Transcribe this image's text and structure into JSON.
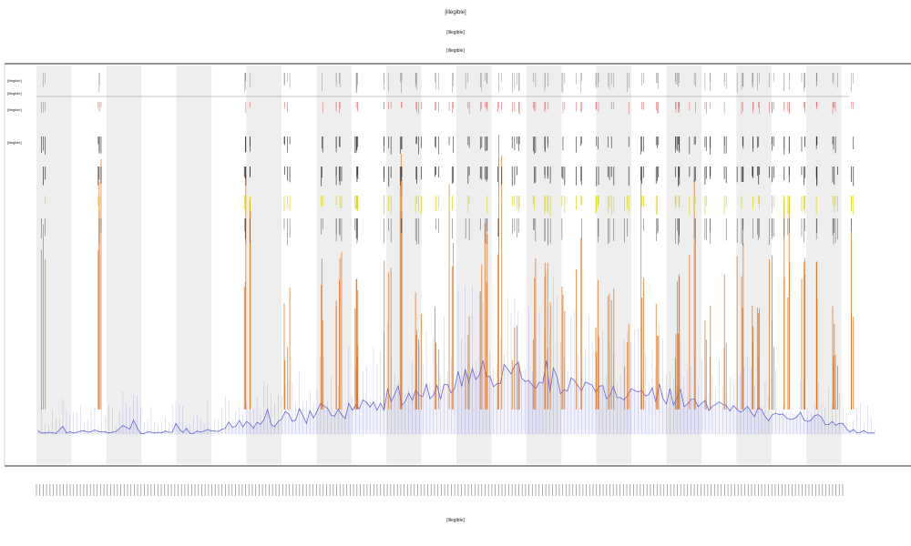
{
  "chart_data": {
    "type": "line",
    "title": "[illegible]",
    "subtitle_lines": [
      "[illegible]",
      "[illegible]"
    ],
    "xlabel": "[illegible]",
    "ylabel": "",
    "legend_labels": [
      "[illegible]",
      "[illegible]",
      "[illegible]",
      "[illegible]"
    ],
    "legend_placement": "top-left",
    "grid": false,
    "band_count": 24,
    "band_color": "#eeeeee",
    "x_tick_count": 240,
    "x": {
      "min": 0,
      "max": 240
    },
    "ylim": [
      0,
      1
    ],
    "colors": {
      "coverage": "#5a5ad6",
      "peaks": "#e06a10",
      "yellow_track": "#d8d400",
      "red_track": "#e05050",
      "dark_track": "#222222"
    },
    "series": [
      {
        "values": [
          0.083,
          0.078,
          0.078,
          0.08,
          0.079,
          0.077,
          0.086,
          0.095,
          0.078,
          0.081,
          0.078,
          0.08,
          0.083,
          0.084,
          0.08,
          0.081,
          0.086,
          0.082,
          0.081,
          0.081,
          0.078,
          0.08,
          0.082,
          0.089,
          0.097,
          0.092,
          0.088,
          0.111,
          0.092,
          0.077,
          0.077,
          0.081,
          0.08,
          0.078,
          0.08,
          0.078,
          0.083,
          0.08,
          0.08,
          0.102,
          0.088,
          0.079,
          0.09,
          0.077,
          0.077,
          0.083,
          0.08,
          0.083,
          0.087,
          0.083,
          0.083,
          0.082,
          0.087,
          0.09,
          0.106,
          0.092,
          0.095,
          0.11,
          0.093,
          0.107,
          0.101,
          0.09,
          0.105,
          0.1,
          0.112,
          0.138,
          0.099,
          0.094,
          0.107,
          0.113,
          0.132,
          0.126,
          0.107,
          0.111,
          0.139,
          0.122,
          0.102,
          0.134,
          0.116,
          0.133,
          0.152,
          0.146,
          0.14,
          0.123,
          0.12,
          0.138,
          0.124,
          0.114,
          0.153,
          0.135,
          0.149,
          0.139,
          0.161,
          0.155,
          0.143,
          0.156,
          0.135,
          0.153,
          0.135,
          0.189,
          0.156,
          0.175,
          0.197,
          0.147,
          0.157,
          0.178,
          0.16,
          0.187,
          0.172,
          0.17,
          0.201,
          0.164,
          0.173,
          0.198,
          0.163,
          0.2,
          0.2,
          0.179,
          0.191,
          0.233,
          0.195,
          0.238,
          0.205,
          0.24,
          0.212,
          0.224,
          0.26,
          0.219,
          0.22,
          0.194,
          0.202,
          0.202,
          0.25,
          0.239,
          0.226,
          0.247,
          0.255,
          0.215,
          0.207,
          0.21,
          0.198,
          0.19,
          0.206,
          0.203,
          0.26,
          0.18,
          0.241,
          0.22,
          0.176,
          0.187,
          0.183,
          0.217,
          0.209,
          0.195,
          0.184,
          0.206,
          0.202,
          0.198,
          0.18,
          0.196,
          0.197,
          0.164,
          0.172,
          0.196,
          0.167,
          0.167,
          0.161,
          0.172,
          0.189,
          0.185,
          0.181,
          0.185,
          0.171,
          0.174,
          0.191,
          0.155,
          0.202,
          0.165,
          0.151,
          0.19,
          0.148,
          0.167,
          0.188,
          0.144,
          0.151,
          0.163,
          0.163,
          0.144,
          0.153,
          0.16,
          0.134,
          0.145,
          0.15,
          0.156,
          0.15,
          0.147,
          0.133,
          0.147,
          0.137,
          0.13,
          0.136,
          0.145,
          0.13,
          0.119,
          0.142,
          0.136,
          0.119,
          0.109,
          0.124,
          0.128,
          0.124,
          0.126,
          0.116,
          0.112,
          0.113,
          0.119,
          0.13,
          0.11,
          0.107,
          0.11,
          0.122,
          0.124,
          0.117,
          0.099,
          0.099,
          0.107,
          0.097,
          0.102,
          0.102,
          0.089,
          0.08,
          0.087,
          0.078,
          0.08,
          0.084,
          0.078,
          0.078,
          0.078
        ]
      }
    ],
    "peak_x": [
      2.3,
      18.5,
      60.4,
      71.8,
      81.0,
      86.5,
      91.2,
      100.4,
      104.9,
      109.4,
      114.0,
      118.7,
      123.3,
      127.8,
      132.4,
      137.0,
      141.6,
      146.1,
      150.7,
      155.3,
      159.8,
      164.4,
      169.0,
      173.6,
      178.1,
      182.7,
      187.3,
      191.8,
      196.4,
      201.0,
      205.6,
      210.1,
      214.7,
      219.3,
      223.8,
      228.4,
      233.0
    ],
    "peak_heights": [
      0.82,
      0.78,
      0.76,
      0.45,
      0.58,
      0.64,
      0.47,
      0.55,
      0.84,
      0.44,
      0.49,
      0.9,
      0.42,
      0.61,
      0.92,
      0.4,
      0.54,
      0.51,
      0.47,
      0.61,
      0.51,
      0.6,
      0.44,
      0.75,
      0.5,
      0.48,
      0.78,
      0.41,
      0.5,
      0.71,
      0.44,
      0.53,
      0.68,
      0.52,
      0.66,
      0.44,
      0.62
    ]
  }
}
